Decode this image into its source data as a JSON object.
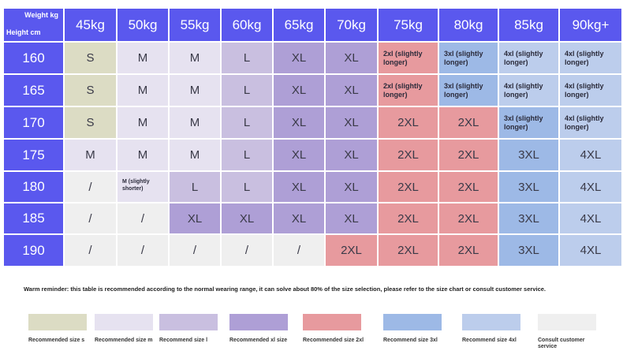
{
  "corner": {
    "weight_label": "Weight kg",
    "height_label": "Height cm"
  },
  "colors": {
    "header": "#5a58ee",
    "S": "#dcdcc4",
    "M": "#e6e2f0",
    "L": "#c9bfe0",
    "XL": "#ae9fd6",
    "2XL": "#e79a9e",
    "3XL": "#9db9e6",
    "4XL": "#bccdec",
    "consult": "#efefef"
  },
  "weights": [
    "45kg",
    "50kg",
    "55kg",
    "60kg",
    "65kg",
    "70kg",
    "75kg",
    "80kg",
    "85kg",
    "90kg+"
  ],
  "rows": [
    {
      "height": "160",
      "cells": [
        {
          "t": "S",
          "c": "S"
        },
        {
          "t": "M",
          "c": "M"
        },
        {
          "t": "M",
          "c": "M"
        },
        {
          "t": "L",
          "c": "L"
        },
        {
          "t": "XL",
          "c": "XL"
        },
        {
          "t": "XL",
          "c": "XL"
        },
        {
          "t": "2xl (slightly longer)",
          "c": "2XL",
          "s": "small"
        },
        {
          "t": "3xl (slightly longer)",
          "c": "3XL",
          "s": "small"
        },
        {
          "t": "4xl (slightly longer)",
          "c": "4XL",
          "s": "small"
        },
        {
          "t": "4xl (slightly longer)",
          "c": "4XL",
          "s": "small"
        }
      ]
    },
    {
      "height": "165",
      "cells": [
        {
          "t": "S",
          "c": "S"
        },
        {
          "t": "M",
          "c": "M"
        },
        {
          "t": "M",
          "c": "M"
        },
        {
          "t": "L",
          "c": "L"
        },
        {
          "t": "XL",
          "c": "XL"
        },
        {
          "t": "XL",
          "c": "XL"
        },
        {
          "t": "2xl (slightly longer)",
          "c": "2XL",
          "s": "small"
        },
        {
          "t": "3xl (slightly longer)",
          "c": "3XL",
          "s": "small"
        },
        {
          "t": "4xl (slightly longer)",
          "c": "4XL",
          "s": "small"
        },
        {
          "t": "4xl (slightly longer)",
          "c": "4XL",
          "s": "small"
        }
      ]
    },
    {
      "height": "170",
      "cells": [
        {
          "t": "S",
          "c": "S"
        },
        {
          "t": "M",
          "c": "M"
        },
        {
          "t": "M",
          "c": "M"
        },
        {
          "t": "L",
          "c": "L"
        },
        {
          "t": "XL",
          "c": "XL"
        },
        {
          "t": "XL",
          "c": "XL"
        },
        {
          "t": "2XL",
          "c": "2XL"
        },
        {
          "t": "2XL",
          "c": "2XL"
        },
        {
          "t": "3xl (slightly longer)",
          "c": "3XL",
          "s": "small"
        },
        {
          "t": "4xl (slightly longer)",
          "c": "4XL",
          "s": "small"
        }
      ]
    },
    {
      "height": "175",
      "cells": [
        {
          "t": "M",
          "c": "M"
        },
        {
          "t": "M",
          "c": "M"
        },
        {
          "t": "M",
          "c": "M"
        },
        {
          "t": "L",
          "c": "L"
        },
        {
          "t": "XL",
          "c": "XL"
        },
        {
          "t": "XL",
          "c": "XL"
        },
        {
          "t": "2XL",
          "c": "2XL"
        },
        {
          "t": "2XL",
          "c": "2XL"
        },
        {
          "t": "3XL",
          "c": "3XL"
        },
        {
          "t": "4XL",
          "c": "4XL"
        }
      ]
    },
    {
      "height": "180",
      "cells": [
        {
          "t": "/",
          "c": "consult"
        },
        {
          "t": "M (slightly shorter)",
          "c": "M",
          "s": "tiny"
        },
        {
          "t": "L",
          "c": "L"
        },
        {
          "t": "L",
          "c": "L"
        },
        {
          "t": "XL",
          "c": "XL"
        },
        {
          "t": "XL",
          "c": "XL"
        },
        {
          "t": "2XL",
          "c": "2XL"
        },
        {
          "t": "2XL",
          "c": "2XL"
        },
        {
          "t": "3XL",
          "c": "3XL"
        },
        {
          "t": "4XL",
          "c": "4XL"
        }
      ]
    },
    {
      "height": "185",
      "cells": [
        {
          "t": "/",
          "c": "consult"
        },
        {
          "t": "/",
          "c": "consult"
        },
        {
          "t": "XL",
          "c": "XL"
        },
        {
          "t": "XL",
          "c": "XL"
        },
        {
          "t": "XL",
          "c": "XL"
        },
        {
          "t": "XL",
          "c": "XL"
        },
        {
          "t": "2XL",
          "c": "2XL"
        },
        {
          "t": "2XL",
          "c": "2XL"
        },
        {
          "t": "3XL",
          "c": "3XL"
        },
        {
          "t": "4XL",
          "c": "4XL"
        }
      ]
    },
    {
      "height": "190",
      "cells": [
        {
          "t": "/",
          "c": "consult"
        },
        {
          "t": "/",
          "c": "consult"
        },
        {
          "t": "/",
          "c": "consult"
        },
        {
          "t": "/",
          "c": "consult"
        },
        {
          "t": "/",
          "c": "consult"
        },
        {
          "t": "2XL",
          "c": "2XL"
        },
        {
          "t": "2XL",
          "c": "2XL"
        },
        {
          "t": "2XL",
          "c": "2XL"
        },
        {
          "t": "3XL",
          "c": "3XL"
        },
        {
          "t": "4XL",
          "c": "4XL"
        }
      ]
    }
  ],
  "note": "Warm reminder: this table is recommended according to the normal wearing range, it can solve about 80% of the size selection, please refer to the size chart or consult customer service.",
  "legend": [
    {
      "label": "Recommended size s",
      "c": "S"
    },
    {
      "label": "Recommended size m",
      "c": "M"
    },
    {
      "label": "Recommend size l",
      "c": "L"
    },
    {
      "label": "Recommended xl size",
      "c": "XL"
    },
    {
      "label": "Recommended size 2xl",
      "c": "2XL"
    },
    {
      "label": "Recommend size 3xl",
      "c": "3XL"
    },
    {
      "label": "Recommend size 4xl",
      "c": "4XL"
    },
    {
      "label": "Consult customer service",
      "c": "consult"
    }
  ]
}
